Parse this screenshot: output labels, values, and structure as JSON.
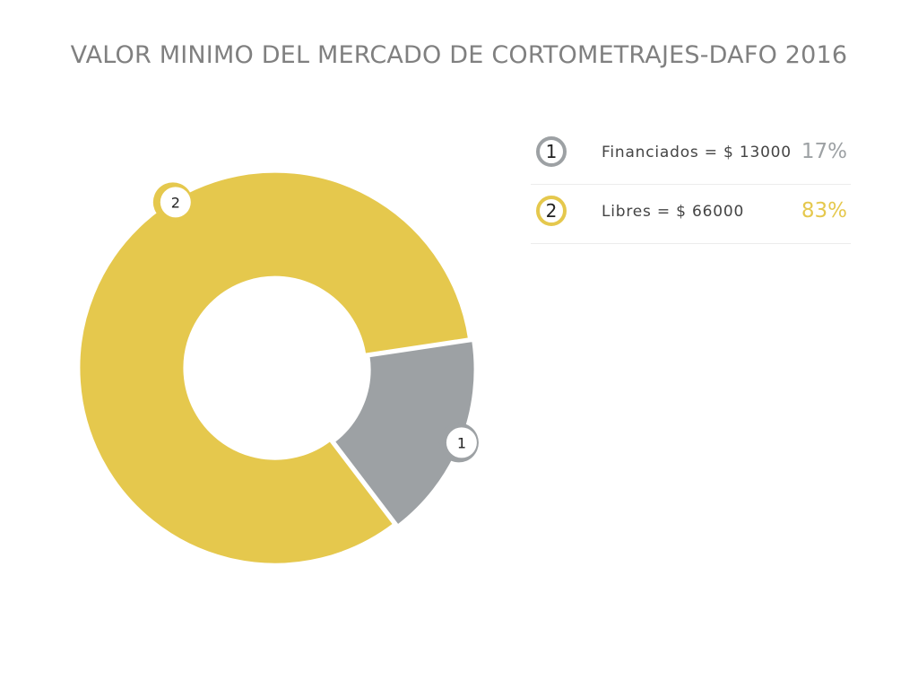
{
  "chart_data": {
    "type": "pie",
    "title": "VALOR MINIMO DEL MERCADO DE CORTOMETRAJES-DAFO 2016",
    "donut": true,
    "slices": [
      {
        "marker": "1",
        "label": "Financiados = $ 13000",
        "value": 17,
        "percent_label": "17%",
        "color": "#9da1a4"
      },
      {
        "marker": "2",
        "label": "Libres = $ 66000",
        "value": 83,
        "percent_label": "83%",
        "color": "#e5c84d"
      }
    ],
    "legend_position": "right"
  }
}
